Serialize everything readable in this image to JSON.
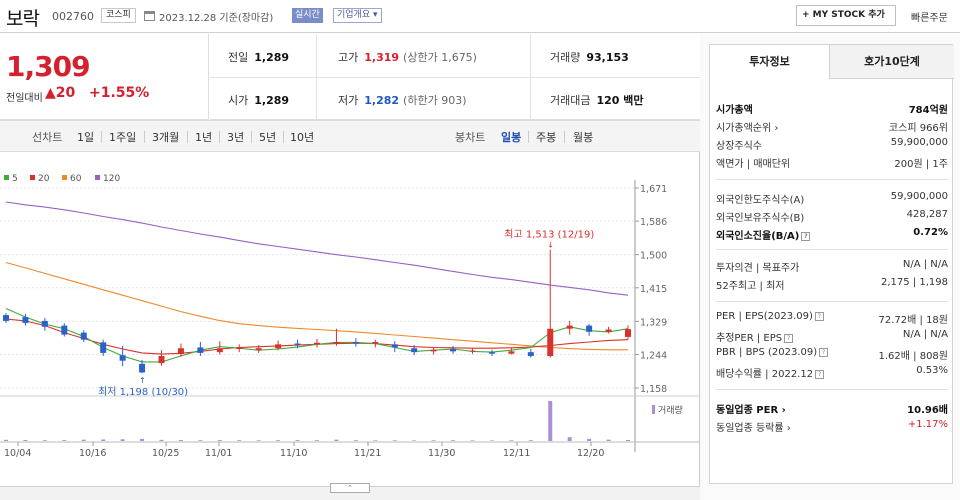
{
  "header": {
    "name": "보락",
    "code": "002760",
    "market": "코스피",
    "date": "2023.12.28 기준(장마감)",
    "realtime": "실시간",
    "overview": "기업개요 ▾",
    "mystock": "+ MY STOCK 추가",
    "fast_order": "빠른주문"
  },
  "price": {
    "current": "1,309",
    "change_label": "전일대비",
    "change": "▲20",
    "change_pct": "+1.55%"
  },
  "stats": {
    "prev_label": "전일",
    "prev": "1,289",
    "high_label": "고가",
    "high": "1,319",
    "upper_limit": "(상한가 1,675)",
    "vol_label": "거래량",
    "vol": "93,153",
    "open_label": "시가",
    "open": "1,289",
    "low_label": "저가",
    "low": "1,282",
    "lower_limit": "(하한가 903)",
    "amt_label": "거래대금",
    "amt": "120 백만"
  },
  "periods": {
    "line_label": "선차트",
    "items": [
      "1일",
      "1주일",
      "3개월",
      "1년",
      "3년",
      "5년",
      "10년"
    ],
    "candle_label": "봉차트",
    "candle_items": [
      "일봉",
      "주봉",
      "월봉"
    ],
    "candle_selected": 0
  },
  "chart_data": {
    "type": "line",
    "subtype": "candlestick",
    "legend": [
      {
        "name": "5",
        "color": "#47a83c"
      },
      {
        "name": "20",
        "color": "#d9312b"
      },
      {
        "name": "60",
        "color": "#f0892a"
      },
      {
        "name": "120",
        "color": "#9a5fc4"
      }
    ],
    "ylim": [
      1158,
      1671
    ],
    "yticks": [
      "1,671",
      "1,586",
      "1,500",
      "1,415",
      "1,329",
      "1,244",
      "1,158"
    ],
    "xticks": [
      "10/04",
      "10/16",
      "10/25",
      "11/01",
      "11/10",
      "11/21",
      "11/30",
      "12/11",
      "12/20"
    ],
    "annotations": {
      "high": "최고 1,513 (12/19)",
      "low": "최저 1,198 (10/30)"
    },
    "volume_label": "거래량",
    "ma120": [
      1635,
      1628,
      1622,
      1615,
      1607,
      1598,
      1590,
      1581,
      1571,
      1562,
      1553,
      1545,
      1536,
      1528,
      1521,
      1514,
      1507,
      1500,
      1494,
      1487,
      1480,
      1473,
      1465,
      1457,
      1449,
      1442,
      1436,
      1429,
      1422,
      1416,
      1410,
      1402,
      1396
    ],
    "ma60": [
      1480,
      1466,
      1452,
      1438,
      1424,
      1410,
      1396,
      1382,
      1368,
      1354,
      1342,
      1331,
      1323,
      1318,
      1314,
      1311,
      1308,
      1305,
      1302,
      1298,
      1294,
      1290,
      1286,
      1282,
      1278,
      1274,
      1270,
      1266,
      1262,
      1259,
      1257,
      1256,
      1256
    ],
    "ma20": [
      1335,
      1330,
      1318,
      1300,
      1285,
      1270,
      1258,
      1248,
      1245,
      1247,
      1252,
      1258,
      1262,
      1264,
      1266,
      1268,
      1270,
      1272,
      1273,
      1272,
      1268,
      1264,
      1262,
      1261,
      1260,
      1260,
      1261,
      1263,
      1267,
      1272,
      1276,
      1280,
      1282
    ],
    "ma5": [
      1362,
      1340,
      1322,
      1310,
      1290,
      1262,
      1240,
      1225,
      1225,
      1240,
      1255,
      1264,
      1260,
      1255,
      1258,
      1263,
      1270,
      1275,
      1275,
      1272,
      1262,
      1252,
      1255,
      1258,
      1252,
      1250,
      1255,
      1262,
      1300,
      1315,
      1305,
      1302,
      1310
    ],
    "candles": [
      [
        1345,
        1330,
        1350,
        1325
      ],
      [
        1340,
        1325,
        1348,
        1318
      ],
      [
        1330,
        1315,
        1338,
        1305
      ],
      [
        1318,
        1295,
        1324,
        1290
      ],
      [
        1300,
        1282,
        1306,
        1276
      ],
      [
        1275,
        1248,
        1282,
        1240
      ],
      [
        1242,
        1228,
        1266,
        1214
      ],
      [
        1220,
        1198,
        1230,
        1196
      ],
      [
        1222,
        1240,
        1255,
        1215
      ],
      [
        1245,
        1260,
        1272,
        1238
      ],
      [
        1262,
        1248,
        1276,
        1240
      ],
      [
        1250,
        1260,
        1278,
        1244
      ],
      [
        1258,
        1262,
        1270,
        1250
      ],
      [
        1255,
        1260,
        1268,
        1248
      ],
      [
        1260,
        1270,
        1280,
        1255
      ],
      [
        1272,
        1268,
        1282,
        1260
      ],
      [
        1270,
        1274,
        1284,
        1262
      ],
      [
        1274,
        1276,
        1310,
        1266
      ],
      [
        1276,
        1272,
        1286,
        1264
      ],
      [
        1272,
        1276,
        1282,
        1262
      ],
      [
        1270,
        1262,
        1278,
        1250
      ],
      [
        1260,
        1250,
        1268,
        1242
      ],
      [
        1252,
        1256,
        1262,
        1244
      ],
      [
        1258,
        1252,
        1266,
        1246
      ],
      [
        1252,
        1254,
        1260,
        1246
      ],
      [
        1250,
        1246,
        1256,
        1240
      ],
      [
        1246,
        1252,
        1260,
        1244
      ],
      [
        1250,
        1240,
        1258,
        1236
      ],
      [
        1240,
        1310,
        1513,
        1236
      ],
      [
        1310,
        1318,
        1330,
        1295
      ],
      [
        1318,
        1302,
        1322,
        1292
      ],
      [
        1302,
        1308,
        1315,
        1298
      ],
      [
        1289,
        1309,
        1319,
        1282
      ]
    ],
    "volume": [
      12,
      10,
      8,
      9,
      14,
      16,
      18,
      22,
      12,
      10,
      8,
      9,
      8,
      7,
      8,
      9,
      8,
      14,
      8,
      7,
      7,
      6,
      7,
      8,
      6,
      6,
      7,
      8,
      420,
      40,
      22,
      14,
      10
    ]
  },
  "info": {
    "tabs": [
      "투자정보",
      "호가10단계"
    ],
    "rows": [
      {
        "k": "시가총액",
        "v": "784억원",
        "bold": true
      },
      {
        "k": "시가총액순위 ›",
        "v": "코스피 966위"
      },
      {
        "k": "상장주식수",
        "v": "59,900,000"
      },
      {
        "k": "액면가 | 매매단위",
        "v": "200원 | 1주"
      },
      {
        "k": "외국인한도주식수(A)",
        "v": "59,900,000"
      },
      {
        "k": "외국인보유주식수(B)",
        "v": "428,287"
      },
      {
        "k": "외국인소진율(B/A)",
        "v": "0.72%",
        "bold": true,
        "q": true
      },
      {
        "k": "투자의견 | 목표주가",
        "v": "N/A | N/A"
      },
      {
        "k": "52주최고 | 최저",
        "v": "2,175 | 1,198"
      },
      {
        "k": "PER | EPS(2023.09)",
        "v": "72.72배 | 18원",
        "q": true
      },
      {
        "k": "추정PER | EPS",
        "v": "N/A | N/A",
        "q": true
      },
      {
        "k": "PBR | BPS (2023.09)",
        "v": "1.62배 | 808원",
        "q": true
      },
      {
        "k": "배당수익률 | 2022.12",
        "v": "0.53%",
        "q": true
      },
      {
        "k": "동일업종 PER ›",
        "v": "10.96배",
        "bold": true
      },
      {
        "k": "동일업종 등락률 ›",
        "v": "+1.17%",
        "red": true
      }
    ]
  }
}
